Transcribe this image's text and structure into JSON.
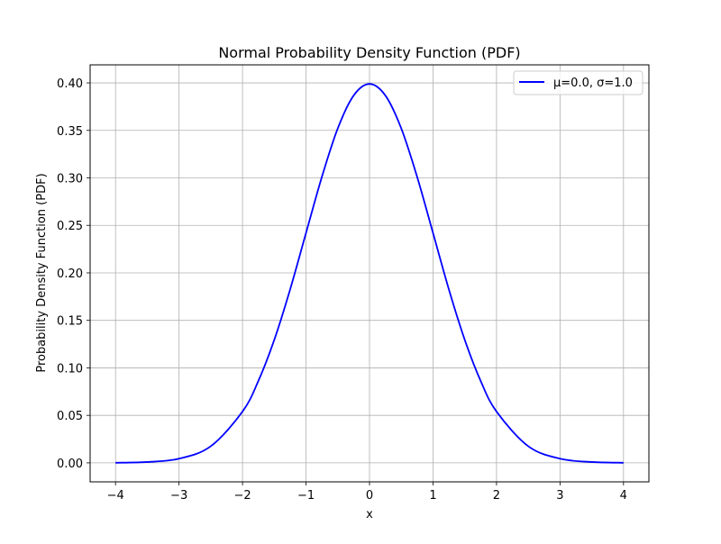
{
  "chart_data": {
    "type": "line",
    "title": "Normal Probability Density Function (PDF)",
    "xlabel": "x",
    "ylabel": "Probability Density Function (PDF)",
    "xlim": [
      -4.4,
      4.4
    ],
    "ylim": [
      -0.02,
      0.419
    ],
    "xticks": [
      -4,
      -3,
      -2,
      -1,
      0,
      1,
      2,
      3,
      4
    ],
    "xtick_labels": [
      "−4",
      "−3",
      "−2",
      "−1",
      "0",
      "1",
      "2",
      "3",
      "4"
    ],
    "yticks": [
      0.0,
      0.05,
      0.1,
      0.15,
      0.2,
      0.25,
      0.3,
      0.35,
      0.4
    ],
    "ytick_labels": [
      "0.00",
      "0.05",
      "0.10",
      "0.15",
      "0.20",
      "0.25",
      "0.30",
      "0.35",
      "0.40"
    ],
    "grid": true,
    "legend_position": "top-right",
    "series": [
      {
        "name": "μ=0.0, σ=1.0",
        "color": "#0000ff",
        "x": [
          -4.0,
          -3.5,
          -3.0,
          -2.5,
          -2.0,
          -1.75,
          -1.5,
          -1.25,
          -1.0,
          -0.75,
          -0.5,
          -0.25,
          0.0,
          0.25,
          0.5,
          0.75,
          1.0,
          1.25,
          1.5,
          1.75,
          2.0,
          2.5,
          3.0,
          3.5,
          4.0
        ],
        "y": [
          0.0001,
          0.0009,
          0.0044,
          0.0175,
          0.054,
          0.0863,
          0.1295,
          0.1826,
          0.242,
          0.3011,
          0.3521,
          0.3867,
          0.3989,
          0.3867,
          0.3521,
          0.3011,
          0.242,
          0.1826,
          0.1295,
          0.0863,
          0.054,
          0.0175,
          0.0044,
          0.0009,
          0.0001
        ]
      }
    ]
  }
}
